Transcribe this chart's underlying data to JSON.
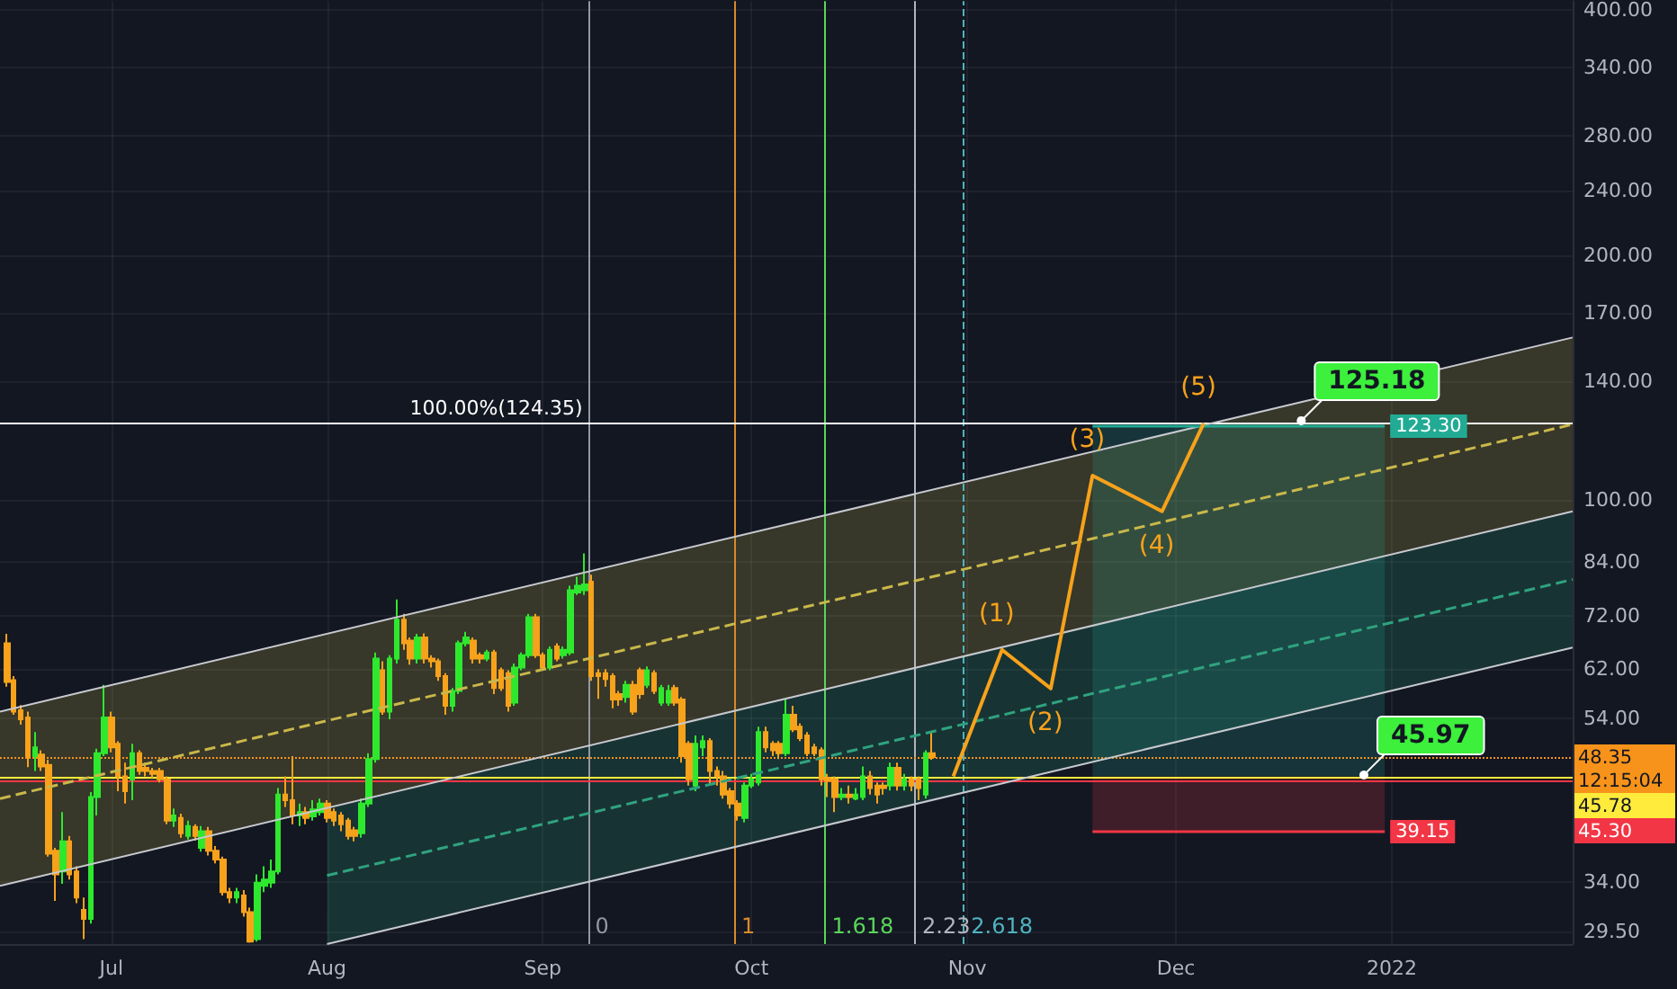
{
  "chart_data": {
    "type": "candlestick",
    "x": [
      "2021-06-16",
      "2021-06-17",
      "2021-06-18",
      "2021-06-19",
      "2021-06-20",
      "2021-06-21",
      "2021-06-22",
      "2021-06-23",
      "2021-06-24",
      "2021-06-25",
      "2021-06-26",
      "2021-06-27",
      "2021-06-28",
      "2021-06-29",
      "2021-06-30",
      "2021-07-01",
      "2021-07-02",
      "2021-07-03",
      "2021-07-04",
      "2021-07-05",
      "2021-07-06",
      "2021-07-07",
      "2021-07-08",
      "2021-07-09",
      "2021-07-10",
      "2021-07-11",
      "2021-07-12",
      "2021-07-13",
      "2021-07-14",
      "2021-07-15",
      "2021-07-16",
      "2021-07-17",
      "2021-07-18",
      "2021-07-19",
      "2021-07-20",
      "2021-07-21",
      "2021-07-22",
      "2021-07-23",
      "2021-07-24",
      "2021-07-25",
      "2021-07-26",
      "2021-07-27",
      "2021-07-28",
      "2021-07-29",
      "2021-07-30",
      "2021-07-31",
      "2021-08-01",
      "2021-08-02",
      "2021-08-03",
      "2021-08-04",
      "2021-08-05",
      "2021-08-06",
      "2021-08-07",
      "2021-08-08",
      "2021-08-09",
      "2021-08-10",
      "2021-08-11",
      "2021-08-12",
      "2021-08-13",
      "2021-08-14",
      "2021-08-15",
      "2021-08-16",
      "2021-08-17",
      "2021-08-18",
      "2021-08-19",
      "2021-08-20",
      "2021-08-21",
      "2021-08-22",
      "2021-08-23",
      "2021-08-24",
      "2021-08-25",
      "2021-08-26",
      "2021-08-27",
      "2021-08-28",
      "2021-08-29",
      "2021-08-30",
      "2021-08-31",
      "2021-09-01",
      "2021-09-02",
      "2021-09-03",
      "2021-09-04",
      "2021-09-05",
      "2021-09-06",
      "2021-09-07",
      "2021-09-08",
      "2021-09-09",
      "2021-09-10",
      "2021-09-11",
      "2021-09-12",
      "2021-09-13",
      "2021-09-14",
      "2021-09-15",
      "2021-09-16",
      "2021-09-17",
      "2021-09-18",
      "2021-09-19",
      "2021-09-20",
      "2021-09-21",
      "2021-09-22",
      "2021-09-23",
      "2021-09-24",
      "2021-09-25",
      "2021-09-26",
      "2021-09-27",
      "2021-09-28",
      "2021-09-29",
      "2021-09-30",
      "2021-10-01",
      "2021-10-02",
      "2021-10-03",
      "2021-10-04",
      "2021-10-05",
      "2021-10-06",
      "2021-10-07",
      "2021-10-08",
      "2021-10-09",
      "2021-10-10",
      "2021-10-11",
      "2021-10-12",
      "2021-10-13",
      "2021-10-14",
      "2021-10-15",
      "2021-10-16",
      "2021-10-17",
      "2021-10-18",
      "2021-10-19",
      "2021-10-20",
      "2021-10-21",
      "2021-10-22",
      "2021-10-23",
      "2021-10-24",
      "2021-10-25",
      "2021-10-26",
      "2021-10-27"
    ],
    "ohlc": [
      [
        66.7,
        68.5,
        59.0,
        59.8
      ],
      [
        60.1,
        60.8,
        54.5,
        55.0
      ],
      [
        55.2,
        56.0,
        53.0,
        53.8
      ],
      [
        54.1,
        55.0,
        47.0,
        48.5
      ],
      [
        48.5,
        51.9,
        46.5,
        49.7
      ],
      [
        48.7,
        49.3,
        46.5,
        47.1
      ],
      [
        47.3,
        48.0,
        36.5,
        36.8
      ],
      [
        37.1,
        37.4,
        32.2,
        34.7
      ],
      [
        35.0,
        41.4,
        33.8,
        38.1
      ],
      [
        38.1,
        38.7,
        34.2,
        34.7
      ],
      [
        35.0,
        35.5,
        32.0,
        32.5
      ],
      [
        31.4,
        32.5,
        28.9,
        30.6
      ],
      [
        30.6,
        43.8,
        30.2,
        43.2
      ],
      [
        43.2,
        49.5,
        41.0,
        48.9
      ],
      [
        48.9,
        59.3,
        48.5,
        54.1
      ],
      [
        54.1,
        55.0,
        49.0,
        49.7
      ],
      [
        50.2,
        50.6,
        43.9,
        45.8
      ],
      [
        45.8,
        47.6,
        42.4,
        43.9
      ],
      [
        45.4,
        50.2,
        42.8,
        48.9
      ],
      [
        48.9,
        49.3,
        46.0,
        46.5
      ],
      [
        46.9,
        47.6,
        45.8,
        46.5
      ],
      [
        46.5,
        46.9,
        45.6,
        46.1
      ],
      [
        46.5,
        46.9,
        45.0,
        45.4
      ],
      [
        45.4,
        45.8,
        40.0,
        40.4
      ],
      [
        40.4,
        41.8,
        39.7,
        41.0
      ],
      [
        40.7,
        41.2,
        38.5,
        39.0
      ],
      [
        38.7,
        40.4,
        38.3,
        39.8
      ],
      [
        39.7,
        40.0,
        38.2,
        38.7
      ],
      [
        37.4,
        39.8,
        37.0,
        39.2
      ],
      [
        39.2,
        39.7,
        36.6,
        37.1
      ],
      [
        37.1,
        37.6,
        35.8,
        36.2
      ],
      [
        36.2,
        36.5,
        32.7,
        33.0
      ],
      [
        33.0,
        33.4,
        32.0,
        32.5
      ],
      [
        32.5,
        33.4,
        32.0,
        33.0
      ],
      [
        32.7,
        33.2,
        30.8,
        31.2
      ],
      [
        31.2,
        31.6,
        28.6,
        28.7
      ],
      [
        28.9,
        34.7,
        28.7,
        33.9
      ],
      [
        33.6,
        35.5,
        33.0,
        34.2
      ],
      [
        33.9,
        36.2,
        33.4,
        35.0
      ],
      [
        35.0,
        44.3,
        34.7,
        43.5
      ],
      [
        43.5,
        45.8,
        42.0,
        42.8
      ],
      [
        42.8,
        48.5,
        40.0,
        41.0
      ],
      [
        41.0,
        42.4,
        39.8,
        41.4
      ],
      [
        41.4,
        42.0,
        40.0,
        40.7
      ],
      [
        40.9,
        42.8,
        40.4,
        41.7
      ],
      [
        41.4,
        43.0,
        41.0,
        42.4
      ],
      [
        42.4,
        42.8,
        40.2,
        40.7
      ],
      [
        41.4,
        41.8,
        39.8,
        40.4
      ],
      [
        41.0,
        41.4,
        39.2,
        40.0
      ],
      [
        40.4,
        40.7,
        38.3,
        38.7
      ],
      [
        39.3,
        39.7,
        38.1,
        38.7
      ],
      [
        39.0,
        43.0,
        38.5,
        42.4
      ],
      [
        42.4,
        48.9,
        42.0,
        48.1
      ],
      [
        48.1,
        65.0,
        47.6,
        63.9
      ],
      [
        61.8,
        63.4,
        54.5,
        55.0
      ],
      [
        55.0,
        64.5,
        53.8,
        63.9
      ],
      [
        63.9,
        75.5,
        63.0,
        71.3
      ],
      [
        71.3,
        72.5,
        65.5,
        66.7
      ],
      [
        67.2,
        67.8,
        62.8,
        63.9
      ],
      [
        63.9,
        68.5,
        63.0,
        67.8
      ],
      [
        67.8,
        68.6,
        63.0,
        63.9
      ],
      [
        63.9,
        64.5,
        62.3,
        63.4
      ],
      [
        63.4,
        63.9,
        60.0,
        60.8
      ],
      [
        60.8,
        61.3,
        54.5,
        55.9
      ],
      [
        55.9,
        58.8,
        55.0,
        58.3
      ],
      [
        58.3,
        67.2,
        57.8,
        66.7
      ],
      [
        66.7,
        68.9,
        66.1,
        67.8
      ],
      [
        67.2,
        67.8,
        63.0,
        63.9
      ],
      [
        64.5,
        65.0,
        63.0,
        63.9
      ],
      [
        63.9,
        65.5,
        63.4,
        65.0
      ],
      [
        65.0,
        65.5,
        57.8,
        58.8
      ],
      [
        61.8,
        62.3,
        58.3,
        58.8
      ],
      [
        61.3,
        61.8,
        55.0,
        55.9
      ],
      [
        56.4,
        63.0,
        55.9,
        62.3
      ],
      [
        62.3,
        65.0,
        61.8,
        64.5
      ],
      [
        64.5,
        72.5,
        64.0,
        71.8
      ],
      [
        71.8,
        72.5,
        64.0,
        64.5
      ],
      [
        64.5,
        65.0,
        61.8,
        62.3
      ],
      [
        62.3,
        66.1,
        61.8,
        65.5
      ],
      [
        66.1,
        66.7,
        63.4,
        63.9
      ],
      [
        64.5,
        66.1,
        63.9,
        65.5
      ],
      [
        65.0,
        78.5,
        64.5,
        77.5
      ],
      [
        77.0,
        80.5,
        76.5,
        78.5
      ],
      [
        77.5,
        86.0,
        76.5,
        78.8
      ],
      [
        79.4,
        81.0,
        60.0,
        60.8
      ],
      [
        61.3,
        62.0,
        57.0,
        60.8
      ],
      [
        61.3,
        62.0,
        59.0,
        60.3
      ],
      [
        60.8,
        61.3,
        55.5,
        56.9
      ],
      [
        57.8,
        58.3,
        55.9,
        56.9
      ],
      [
        57.3,
        60.0,
        56.4,
        59.3
      ],
      [
        59.3,
        60.0,
        54.5,
        55.0
      ],
      [
        61.8,
        62.3,
        57.0,
        57.8
      ],
      [
        59.3,
        62.5,
        58.8,
        61.8
      ],
      [
        61.3,
        61.8,
        57.8,
        58.3
      ],
      [
        56.4,
        59.3,
        55.9,
        58.8
      ],
      [
        56.4,
        59.3,
        55.9,
        58.3
      ],
      [
        58.8,
        59.3,
        55.9,
        56.4
      ],
      [
        56.9,
        57.3,
        47.6,
        48.5
      ],
      [
        50.2,
        50.6,
        44.6,
        45.4
      ],
      [
        44.6,
        51.4,
        43.9,
        50.2
      ],
      [
        49.7,
        51.4,
        48.5,
        50.6
      ],
      [
        50.6,
        51.0,
        44.6,
        46.5
      ],
      [
        46.5,
        47.1,
        44.6,
        45.8
      ],
      [
        45.8,
        46.5,
        43.0,
        43.5
      ],
      [
        43.9,
        44.3,
        41.8,
        42.4
      ],
      [
        42.4,
        42.8,
        40.4,
        41.0
      ],
      [
        40.7,
        45.0,
        40.2,
        44.6
      ],
      [
        44.6,
        46.1,
        44.3,
        45.4
      ],
      [
        45.0,
        52.7,
        44.6,
        51.9
      ],
      [
        51.9,
        52.7,
        49.0,
        49.7
      ],
      [
        50.2,
        50.6,
        48.5,
        49.3
      ],
      [
        50.2,
        50.6,
        48.1,
        48.9
      ],
      [
        48.9,
        56.9,
        48.5,
        54.5
      ],
      [
        54.5,
        55.9,
        51.9,
        52.3
      ],
      [
        52.7,
        53.2,
        50.6,
        51.0
      ],
      [
        51.4,
        51.9,
        48.5,
        48.9
      ],
      [
        49.7,
        50.2,
        48.5,
        48.9
      ],
      [
        49.3,
        49.7,
        44.6,
        45.4
      ],
      [
        45.6,
        46.1,
        43.2,
        45.2
      ],
      [
        45.4,
        45.8,
        41.4,
        43.2
      ],
      [
        43.2,
        44.3,
        42.8,
        43.5
      ],
      [
        43.5,
        44.6,
        42.4,
        43.2
      ],
      [
        43.0,
        44.3,
        42.8,
        43.5
      ],
      [
        43.2,
        47.1,
        42.8,
        45.8
      ],
      [
        45.8,
        46.5,
        43.5,
        44.3
      ],
      [
        44.6,
        45.0,
        42.4,
        43.5
      ],
      [
        44.6,
        45.0,
        43.5,
        44.3
      ],
      [
        44.6,
        47.6,
        44.0,
        46.9
      ],
      [
        46.9,
        47.6,
        44.0,
        44.6
      ],
      [
        44.6,
        46.1,
        44.0,
        45.4
      ],
      [
        45.4,
        45.8,
        43.9,
        44.6
      ],
      [
        45.4,
        45.8,
        42.8,
        44.3
      ],
      [
        43.5,
        49.3,
        43.0,
        48.9
      ],
      [
        48.9,
        51.9,
        48.0,
        48.35
      ]
    ],
    "colors": [
      "#f7a21b",
      "#f7a21b",
      "#f7a21b",
      "#f7a21b",
      "#2ee82e",
      "#f7a21b",
      "#f7a21b",
      "#f7a21b",
      "#2ee82e",
      "#f7a21b",
      "#f7a21b",
      "#f7a21b",
      "#2ee82e",
      "#2ee82e",
      "#2ee82e",
      "#f7a21b",
      "#f7a21b",
      "#f7a21b",
      "#2ee82e",
      "#f7a21b",
      "#f7a21b",
      "#f7a21b",
      "#f7a21b",
      "#f7a21b",
      "#2ee82e",
      "#f7a21b",
      "#2ee82e",
      "#f7a21b",
      "#2ee82e",
      "#f7a21b",
      "#f7a21b",
      "#f7a21b",
      "#f7a21b",
      "#2ee82e",
      "#f7a21b",
      "#f7a21b",
      "#2ee82e",
      "#2ee82e",
      "#2ee82e",
      "#2ee82e",
      "#f7a21b",
      "#f7a21b",
      "#2ee82e",
      "#f7a21b",
      "#2ee82e",
      "#2ee82e",
      "#f7a21b",
      "#f7a21b",
      "#f7a21b",
      "#f7a21b",
      "#f7a21b",
      "#2ee82e",
      "#2ee82e",
      "#2ee82e",
      "#f7a21b",
      "#2ee82e",
      "#2ee82e",
      "#f7a21b",
      "#f7a21b",
      "#2ee82e",
      "#f7a21b",
      "#f7a21b",
      "#f7a21b",
      "#f7a21b",
      "#2ee82e",
      "#2ee82e",
      "#2ee82e",
      "#f7a21b",
      "#f7a21b",
      "#2ee82e",
      "#f7a21b",
      "#f7a21b",
      "#f7a21b",
      "#2ee82e",
      "#2ee82e",
      "#2ee82e",
      "#f7a21b",
      "#f7a21b",
      "#2ee82e",
      "#f7a21b",
      "#2ee82e",
      "#2ee82e",
      "#2ee82e",
      "#2ee82e",
      "#f7a21b",
      "#f7a21b",
      "#f7a21b",
      "#f7a21b",
      "#f7a21b",
      "#2ee82e",
      "#f7a21b",
      "#f7a21b",
      "#2ee82e",
      "#f7a21b",
      "#2ee82e",
      "#2ee82e",
      "#f7a21b",
      "#f7a21b",
      "#f7a21b",
      "#2ee82e",
      "#2ee82e",
      "#f7a21b",
      "#f7a21b",
      "#f7a21b",
      "#f7a21b",
      "#f7a21b",
      "#2ee82e",
      "#2ee82e",
      "#2ee82e",
      "#f7a21b",
      "#f7a21b",
      "#f7a21b",
      "#2ee82e",
      "#f7a21b",
      "#f7a21b",
      "#f7a21b",
      "#f7a21b",
      "#f7a21b",
      "#f7a21b",
      "#f7a21b",
      "#2ee82e",
      "#f7a21b",
      "#2ee82e",
      "#2ee82e",
      "#f7a21b",
      "#f7a21b",
      "#f7a21b",
      "#2ee82e",
      "#f7a21b",
      "#2ee82e",
      "#f7a21b",
      "#f7a21b",
      "#2ee82e",
      "#f7a21b"
    ],
    "series": [
      {
        "type": "line",
        "line_style": "dashed",
        "color": "#c9b84a",
        "x": [
          "2021-06-15",
          "2022-01-27"
        ],
        "values": [
          43.0,
          123.9
        ],
        "lower": [
          33.6,
          96.9
        ],
        "upper": [
          55.0,
          158.4
        ]
      },
      {
        "type": "line",
        "line_style": "dashed",
        "color": "#2fa37f",
        "x": [
          "2021-08-01",
          "2022-01-27"
        ],
        "values": [
          34.6,
          79.9
        ],
        "lower": [
          28.5,
          65.9
        ],
        "upper": [
          41.9,
          96.9
        ]
      },
      {
        "type": "line",
        "color": "#c7c9cf",
        "x": [
          "2021-06-15",
          "2022-01-27"
        ],
        "values": [
          55.0,
          158.4
        ]
      },
      {
        "type": "line",
        "color": "#c7c9cf",
        "x": [
          "2021-06-15",
          "2022-01-27"
        ],
        "values": [
          33.6,
          96.9
        ]
      },
      {
        "type": "line",
        "color": "#c7c9cf",
        "x": [
          "2021-08-01",
          "2022-01-27"
        ],
        "values": [
          28.5,
          65.9
        ]
      },
      {
        "type": "line",
        "color": "#22ab94",
        "x": [
          "2021-11-19",
          "2021-12-31"
        ],
        "values": [
          123.3,
          123.3
        ],
        "lower": [
          45.78,
          45.78
        ],
        "upper": [
          123.3,
          123.3
        ],
        "value_labels": [
          null,
          "123.30"
        ]
      },
      {
        "type": "line",
        "color": "#f23645",
        "x": [
          "2021-11-19",
          "2021-12-31"
        ],
        "values": [
          39.15,
          39.15
        ],
        "lower": [
          39.15,
          39.15
        ],
        "upper": [
          45.78,
          45.78
        ],
        "value_labels": [
          null,
          "39.15"
        ]
      },
      {
        "type": "line",
        "color": "#f7a21b",
        "x": [
          "2021-10-30",
          "2021-11-06",
          "2021-11-13",
          "2021-11-19",
          "2021-11-29",
          "2021-12-05"
        ],
        "values": [
          45.78,
          65.5,
          58.7,
          107.2,
          96.9,
          124.35
        ]
      }
    ],
    "xlim": [
      "2021-06-15",
      "2022-01-27"
    ],
    "xticks": [
      {
        "value": "2021-07-01",
        "label": "Jul"
      },
      {
        "value": "2021-08-01",
        "label": "Aug"
      },
      {
        "value": "2021-09-01",
        "label": "Sep"
      },
      {
        "value": "2021-10-01",
        "label": "Oct"
      },
      {
        "value": "2021-11-01",
        "label": "Nov"
      },
      {
        "value": "2021-12-01",
        "label": "Dec"
      },
      {
        "value": "2022-01-01",
        "label": "2022"
      }
    ],
    "ylim": [
      28.5,
      410
    ],
    "yticks": [
      {
        "value": 29.5,
        "label": "29.50"
      },
      {
        "value": 34,
        "label": "34.00"
      },
      {
        "value": 54,
        "label": "54.00"
      },
      {
        "value": 62,
        "label": "62.00"
      },
      {
        "value": 72,
        "label": "72.00"
      },
      {
        "value": 84,
        "label": "84.00"
      },
      {
        "value": 100,
        "label": "100.00"
      },
      {
        "value": 140,
        "label": "140.00"
      },
      {
        "value": 170,
        "label": "170.00"
      },
      {
        "value": 200,
        "label": "200.00"
      },
      {
        "value": 240,
        "label": "240.00"
      },
      {
        "value": 280,
        "label": "280.00"
      },
      {
        "value": 340,
        "label": "340.00"
      },
      {
        "value": 400,
        "label": "400.00"
      }
    ],
    "log": "y",
    "grid": true,
    "ref_lines": [
      {
        "axis": "x",
        "value": "2021-09-07T12:00",
        "label": "0",
        "color": "#9598a1"
      },
      {
        "axis": "x",
        "value": "2021-09-28T12:00",
        "label": "1",
        "color": "#d98a2b"
      },
      {
        "axis": "x",
        "value": "2021-10-11T12:00",
        "label": "1.618",
        "color": "#5ad65a"
      },
      {
        "axis": "x",
        "value": "2021-10-24T12:00",
        "label": "2.23",
        "color": "#b2b5be"
      },
      {
        "axis": "x",
        "value": "2021-10-31T12:00",
        "label": "2.618",
        "color": "#4fb3bf",
        "line_style": "dashed"
      },
      {
        "axis": "y",
        "value": 124.35,
        "color": "#ffffff"
      },
      {
        "axis": "y",
        "value": 48.35,
        "label": "48.35\n12:15:04",
        "color": "#f7931a",
        "line_style": "dotted"
      },
      {
        "axis": "y",
        "value": 45.78,
        "label": "45.78",
        "color": "#ffeb3b"
      },
      {
        "axis": "y",
        "value": 45.3,
        "label": "45.30",
        "color": "#f23645"
      }
    ],
    "annotations": [
      {
        "text": "100.00%(124.35)",
        "x": "2021-09-07T12:00",
        "y": 124.35
      },
      {
        "text": "125.18",
        "x": "2021-12-19",
        "y": 125.18
      },
      {
        "text": "45.97",
        "x": "2021-12-28",
        "y": 45.97
      },
      {
        "text": "(1)",
        "x": "2021-11-06",
        "y": 65.5
      },
      {
        "text": "(2)",
        "x": "2021-11-13",
        "y": 58.7
      },
      {
        "text": "(3)",
        "x": "2021-11-19",
        "y": 107.2
      },
      {
        "text": "(4)",
        "x": "2021-11-29",
        "y": 96.9
      },
      {
        "text": "(5)",
        "x": "2021-12-05",
        "y": 124.35
      }
    ]
  }
}
